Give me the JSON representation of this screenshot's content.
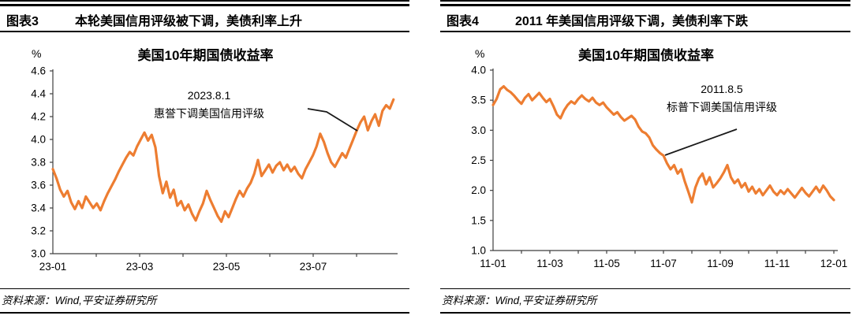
{
  "colors": {
    "line": "#ED7D31",
    "axis": "#3f3f3f",
    "rule": "#000000",
    "text": "#000000"
  },
  "chart_data": [
    {
      "type": "line",
      "figure_tag": "图表3",
      "figure_title": "本轮美国信用评级被下调，美债利率上升",
      "chart_title": "美国10年期国债收益率",
      "y_unit": "%",
      "ylabel": "",
      "xlabel": "",
      "ylim": [
        3.0,
        4.6
      ],
      "ytick_labels": [
        "4.6",
        "4.4",
        "4.2",
        "4.0",
        "3.8",
        "3.6",
        "3.4",
        "3.2",
        "3.0"
      ],
      "xtick_labels": [
        "23-01",
        "23-03",
        "23-05",
        "23-07"
      ],
      "x_start": "2023-01",
      "x_end": "2023-08",
      "x_spacing": "uniform",
      "legend": "none",
      "grid": false,
      "annotation": {
        "line1": "2023.8.1",
        "line2": "惠誉下调美国信用评级"
      },
      "series": [
        {
          "name": "美国10年期国债收益率",
          "color": "#ED7D31",
          "values": [
            3.74,
            3.66,
            3.56,
            3.5,
            3.55,
            3.45,
            3.39,
            3.46,
            3.4,
            3.5,
            3.45,
            3.4,
            3.44,
            3.38,
            3.46,
            3.53,
            3.59,
            3.65,
            3.72,
            3.78,
            3.84,
            3.89,
            3.86,
            3.94,
            4.0,
            4.06,
            3.99,
            4.04,
            3.93,
            3.68,
            3.53,
            3.63,
            3.49,
            3.56,
            3.42,
            3.46,
            3.38,
            3.43,
            3.35,
            3.29,
            3.37,
            3.44,
            3.55,
            3.47,
            3.4,
            3.33,
            3.28,
            3.37,
            3.32,
            3.4,
            3.48,
            3.55,
            3.5,
            3.57,
            3.62,
            3.7,
            3.82,
            3.68,
            3.73,
            3.78,
            3.71,
            3.77,
            3.8,
            3.73,
            3.78,
            3.72,
            3.76,
            3.7,
            3.66,
            3.74,
            3.8,
            3.86,
            3.94,
            4.05,
            3.98,
            3.88,
            3.8,
            3.76,
            3.82,
            3.88,
            3.84,
            3.92,
            4.0,
            4.08,
            4.15,
            4.2,
            4.08,
            4.16,
            4.22,
            4.12,
            4.25,
            4.3,
            4.27,
            4.35
          ]
        }
      ],
      "source": "资料来源：Wind,平安证券研究所"
    },
    {
      "type": "line",
      "figure_tag": "图表4",
      "figure_title": "2011 年美国信用评级下调，美债利率下跌",
      "chart_title": "美国10年期国债收益率",
      "y_unit": "%",
      "ylabel": "",
      "xlabel": "",
      "ylim": [
        1.0,
        4.0
      ],
      "ytick_labels": [
        "4.0",
        "3.5",
        "3.0",
        "2.5",
        "2.0",
        "1.5",
        "1.0"
      ],
      "xtick_labels": [
        "11-01",
        "11-03",
        "11-05",
        "11-07",
        "11-09",
        "11-11",
        "12-01"
      ],
      "x_start": "2011-01",
      "x_end": "2012-01",
      "x_spacing": "uniform",
      "legend": "none",
      "grid": false,
      "annotation": {
        "line1": "2011.8.5",
        "line2": "标普下调美国信用评级"
      },
      "series": [
        {
          "name": "美国10年期国债收益率",
          "color": "#ED7D31",
          "values": [
            3.42,
            3.52,
            3.68,
            3.73,
            3.67,
            3.63,
            3.57,
            3.5,
            3.44,
            3.54,
            3.6,
            3.5,
            3.56,
            3.62,
            3.54,
            3.47,
            3.52,
            3.4,
            3.26,
            3.2,
            3.33,
            3.42,
            3.48,
            3.44,
            3.52,
            3.58,
            3.52,
            3.48,
            3.54,
            3.46,
            3.42,
            3.46,
            3.38,
            3.32,
            3.26,
            3.3,
            3.22,
            3.16,
            3.2,
            3.24,
            3.18,
            3.06,
            2.98,
            2.95,
            2.88,
            2.75,
            2.68,
            2.62,
            2.58,
            2.45,
            2.35,
            2.42,
            2.28,
            2.35,
            2.15,
            1.98,
            1.8,
            2.05,
            2.2,
            2.28,
            2.1,
            2.22,
            2.05,
            2.12,
            2.2,
            2.3,
            2.42,
            2.22,
            2.12,
            2.18,
            2.05,
            2.12,
            1.98,
            2.06,
            1.95,
            2.02,
            1.92,
            2.0,
            2.08,
            1.98,
            1.92,
            2.0,
            1.94,
            2.02,
            1.95,
            1.88,
            1.96,
            2.04,
            1.96,
            1.9,
            1.98,
            2.06,
            1.97,
            2.08,
            2.0,
            1.9,
            1.84
          ]
        }
      ],
      "source": "资料来源：Wind,平安证券研究所"
    }
  ]
}
